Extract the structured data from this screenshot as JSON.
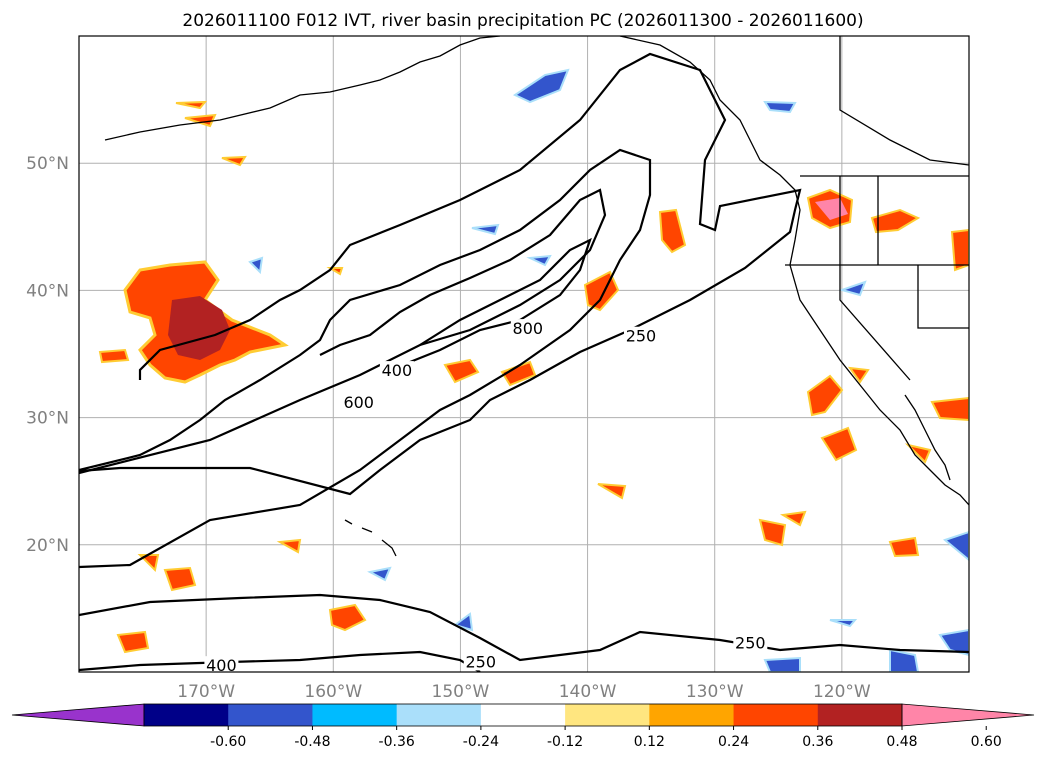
{
  "title": "2026011100 F012 IVT, river basin precipitation PC (2026011300 - 2026011600)",
  "map": {
    "lon_range": [
      -180,
      -110
    ],
    "lat_range": [
      10,
      60
    ],
    "lat_ticks": [
      {
        "value": 20,
        "label": "20°N"
      },
      {
        "value": 30,
        "label": "30°N"
      },
      {
        "value": 40,
        "label": "40°N"
      },
      {
        "value": 50,
        "label": "50°N"
      }
    ],
    "lon_ticks": [
      {
        "value": -170,
        "label": "170°W"
      },
      {
        "value": -160,
        "label": "160°W"
      },
      {
        "value": -150,
        "label": "150°W"
      },
      {
        "value": -140,
        "label": "140°W"
      },
      {
        "value": -130,
        "label": "130°W"
      },
      {
        "value": -120,
        "label": "120°W"
      }
    ],
    "grid": true,
    "contour_labels": [
      {
        "text": "600",
        "lon": -158.0,
        "lat": 31.0
      },
      {
        "text": "400",
        "lon": -155.0,
        "lat": 33.5
      },
      {
        "text": "800",
        "lon": -144.7,
        "lat": 36.8
      },
      {
        "text": "250",
        "lon": -135.8,
        "lat": 36.2
      },
      {
        "text": "250",
        "lon": -127.2,
        "lat": 12.1
      },
      {
        "text": "250",
        "lon": -148.4,
        "lat": 10.6
      },
      {
        "text": "400",
        "lon": -168.8,
        "lat": 10.3
      }
    ]
  },
  "colorbar": {
    "colors": [
      "#9933cc",
      "#000088",
      "#3355cc",
      "#00bbff",
      "#aadffa",
      "#ffffff",
      "#ffe680",
      "#ffa500",
      "#ff4500",
      "#b22222",
      "#ff85a8"
    ],
    "tick_labels": [
      "-0.60",
      "-0.48",
      "-0.36",
      "-0.24",
      "-0.12",
      "0.12",
      "0.24",
      "0.36",
      "0.48",
      "0.60"
    ],
    "extend": "both"
  }
}
